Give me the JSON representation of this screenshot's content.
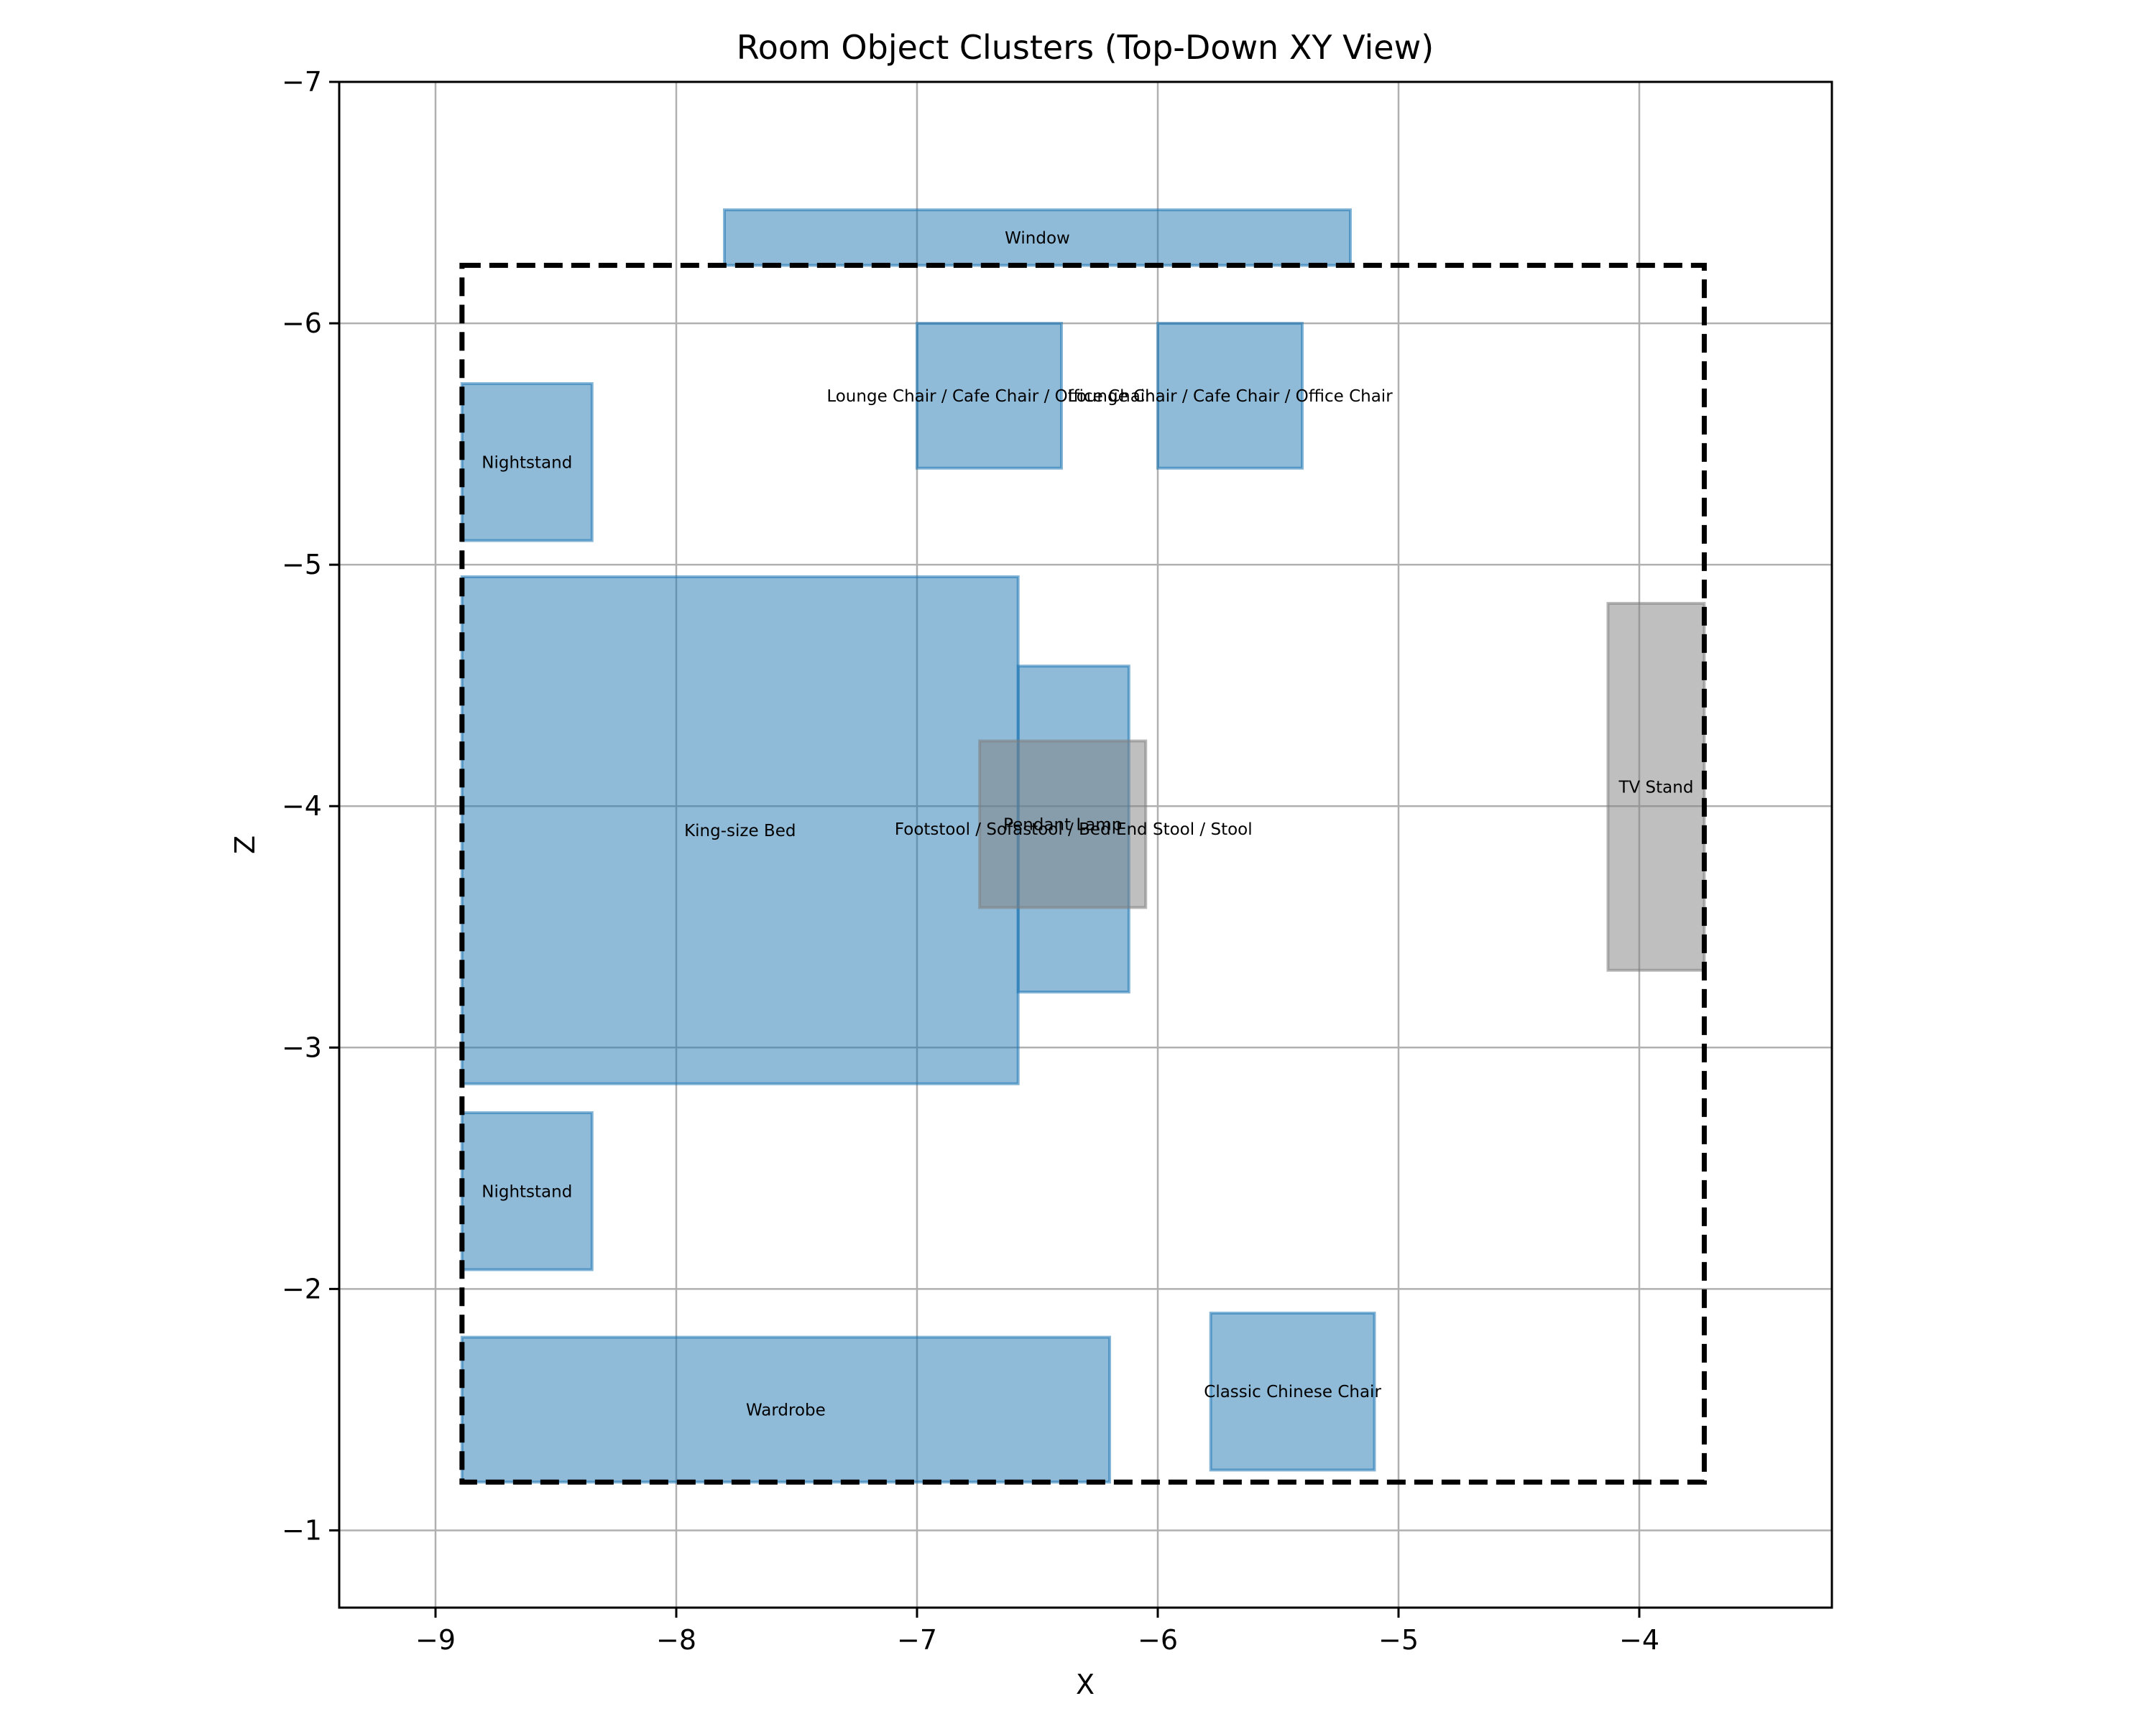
{
  "chart_data": {
    "type": "rectangles",
    "title": "Room Object Clusters (Top-Down XY View)",
    "xlabel": "X",
    "ylabel": "Z",
    "xlim": [
      -9.4,
      -3.2
    ],
    "ylim": [
      -0.68,
      -7.0
    ],
    "y_axis_inverted": true,
    "grid": true,
    "xticks": [
      -9,
      -8,
      -7,
      -6,
      -5,
      -4
    ],
    "yticks": [
      -7,
      -6,
      -5,
      -4,
      -3,
      -2,
      -1
    ],
    "xtick_labels": [
      "−9",
      "−8",
      "−7",
      "−6",
      "−5",
      "−4"
    ],
    "ytick_labels": [
      "−7",
      "−6",
      "−5",
      "−4",
      "−3",
      "−2",
      "−1"
    ],
    "colors": {
      "blue_fill": "#1f77b4",
      "blue_fill_opacity": 0.5,
      "gray_fill": "#808080",
      "gray_fill_opacity": 0.5
    },
    "room_boundary": {
      "x0": -8.89,
      "x1": -3.73,
      "z0": -6.24,
      "z1": -1.2,
      "style": "dashed"
    },
    "objects": [
      {
        "label": "Window",
        "x0": -7.8,
        "x1": -5.2,
        "z0": -6.47,
        "z1": -6.24,
        "color": "blue"
      },
      {
        "label": "Lounge Chair / Cafe Chair / Office Chair",
        "x0": -7.0,
        "x1": -6.4,
        "z0": -6.0,
        "z1": -5.4,
        "color": "blue"
      },
      {
        "label": "Lounge Chair / Cafe Chair / Office Chair",
        "x0": -6.0,
        "x1": -5.4,
        "z0": -6.0,
        "z1": -5.4,
        "color": "blue"
      },
      {
        "label": "Nightstand",
        "x0": -8.89,
        "x1": -8.35,
        "z0": -5.75,
        "z1": -5.1,
        "color": "blue"
      },
      {
        "label": "King-size Bed",
        "x0": -8.89,
        "x1": -6.58,
        "z0": -4.95,
        "z1": -2.85,
        "color": "blue"
      },
      {
        "label": "Footstool / Sofastool / Bed End Stool / Stool",
        "x0": -6.58,
        "x1": -6.12,
        "z0": -4.58,
        "z1": -3.23,
        "color": "blue"
      },
      {
        "label": "Pendant Lamp",
        "x0": -6.74,
        "x1": -6.05,
        "z0": -4.27,
        "z1": -3.58,
        "color": "gray"
      },
      {
        "label": "TV Stand",
        "x0": -4.13,
        "x1": -3.73,
        "z0": -4.84,
        "z1": -3.32,
        "color": "gray"
      },
      {
        "label": "Nightstand",
        "x0": -8.89,
        "x1": -8.35,
        "z0": -2.73,
        "z1": -2.08,
        "color": "blue"
      },
      {
        "label": "Wardrobe",
        "x0": -8.89,
        "x1": -6.2,
        "z0": -1.8,
        "z1": -1.2,
        "color": "blue"
      },
      {
        "label": "Classic Chinese Chair",
        "x0": -5.78,
        "x1": -5.1,
        "z0": -1.9,
        "z1": -1.25,
        "color": "blue"
      }
    ]
  }
}
